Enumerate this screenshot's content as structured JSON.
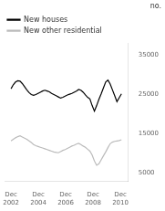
{
  "chart_data": {
    "type": "line",
    "ylabel": "no.",
    "x": [
      2002.92,
      2003.0848979592,
      2003.2497959184,
      2003.4146938776,
      2003.5795918367,
      2003.7444897959,
      2003.9093877551,
      2004.0742857143,
      2004.2391836735,
      2004.4040816327,
      2004.5689795918,
      2004.733877551,
      2004.8987755102,
      2005.0636734694,
      2005.2285714286,
      2005.3934693878,
      2005.5583673469,
      2005.7232653061,
      2005.8881632653,
      2006.0530612245,
      2006.2179591837,
      2006.3828571429,
      2006.547755102,
      2006.7126530612,
      2006.8775510204,
      2007.0424489796,
      2007.2073469388,
      2007.372244898,
      2007.5371428571,
      2007.7020408163,
      2007.8669387755,
      2008.0318367347,
      2008.1967346939,
      2008.3616326531,
      2008.5265306122,
      2008.6914285714,
      2008.8563265306,
      2009.0212244898,
      2009.186122449,
      2009.3510204082,
      2009.5159183673,
      2009.6808163265,
      2009.8457142857,
      2010.0106122449,
      2010.1755102041,
      2010.3404081633,
      2010.5053061224,
      2010.6702040816,
      2010.8351020408,
      2011.0
    ],
    "series": [
      {
        "name": "New houses",
        "color": "#000000",
        "values": [
          26500,
          27500,
          28200,
          28500,
          28400,
          27800,
          27000,
          26200,
          25500,
          25000,
          24800,
          25000,
          25300,
          25600,
          25900,
          26100,
          25900,
          25700,
          25300,
          25000,
          24700,
          24400,
          24100,
          24300,
          24600,
          24900,
          25100,
          25300,
          25600,
          25900,
          26300,
          26100,
          25600,
          24900,
          24300,
          23900,
          22200,
          20800,
          22200,
          23800,
          25200,
          26700,
          28200,
          28700,
          27700,
          26200,
          24700,
          23200,
          24200,
          25200
        ]
      },
      {
        "name": "New other residential",
        "color": "#bbbbbb",
        "values": [
          13200,
          13600,
          14000,
          14300,
          14500,
          14200,
          13900,
          13600,
          13200,
          12800,
          12300,
          12000,
          11800,
          11600,
          11400,
          11200,
          11000,
          10800,
          10600,
          10400,
          10300,
          10200,
          10500,
          10800,
          11000,
          11300,
          11600,
          11900,
          12100,
          12400,
          12600,
          12300,
          11900,
          11600,
          11100,
          10600,
          9600,
          8100,
          7000,
          7400,
          8400,
          9400,
          10400,
          11500,
          12500,
          12900,
          13100,
          13200,
          13300,
          13500
        ]
      }
    ],
    "xlim": [
      2002.5,
      2011.5
    ],
    "xticks": [
      {
        "value": 2002.92,
        "label": "Dec\n2002"
      },
      {
        "value": 2004.92,
        "label": "Dec\n2004"
      },
      {
        "value": 2006.92,
        "label": "Dec\n2006"
      },
      {
        "value": 2008.92,
        "label": "Dec\n2008"
      },
      {
        "value": 2010.92,
        "label": "Dec\n2010"
      }
    ],
    "ylim": [
      3000,
      38000
    ],
    "yticks": [
      5000,
      15000,
      25000,
      35000
    ],
    "grid": false,
    "legend": "upper left"
  }
}
